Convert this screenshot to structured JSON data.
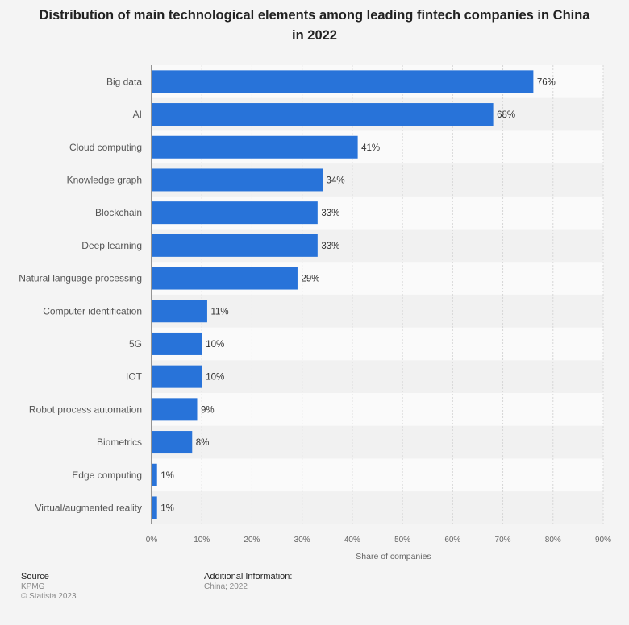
{
  "chart_data": {
    "type": "bar",
    "orientation": "horizontal",
    "title": "Distribution of main technological elements among leading fintech companies in China in 2022",
    "xlabel": "Share of companies",
    "ylabel": "",
    "xlim": [
      0,
      90
    ],
    "x_ticks": [
      "0%",
      "10%",
      "20%",
      "30%",
      "40%",
      "50%",
      "60%",
      "70%",
      "80%",
      "90%"
    ],
    "grid": true,
    "categories": [
      "Big data",
      "AI",
      "Cloud computing",
      "Knowledge graph",
      "Blockchain",
      "Deep learning",
      "Natural language processing",
      "Computer identification",
      "5G",
      "IOT",
      "Robot process automation",
      "Biometrics",
      "Edge computing",
      "Virtual/augmented reality"
    ],
    "values": [
      76,
      68,
      41,
      34,
      33,
      33,
      29,
      11,
      10,
      10,
      9,
      8,
      1,
      1
    ],
    "value_labels": [
      "76%",
      "68%",
      "41%",
      "34%",
      "33%",
      "33%",
      "29%",
      "11%",
      "10%",
      "10%",
      "9%",
      "8%",
      "1%",
      "1%"
    ],
    "bar_color": "#2873d9"
  },
  "footer": {
    "source_label": "Source",
    "source_value": "KPMG",
    "copyright": "© Statista 2023",
    "additional_label": "Additional Information:",
    "additional_value": "China; 2022"
  }
}
